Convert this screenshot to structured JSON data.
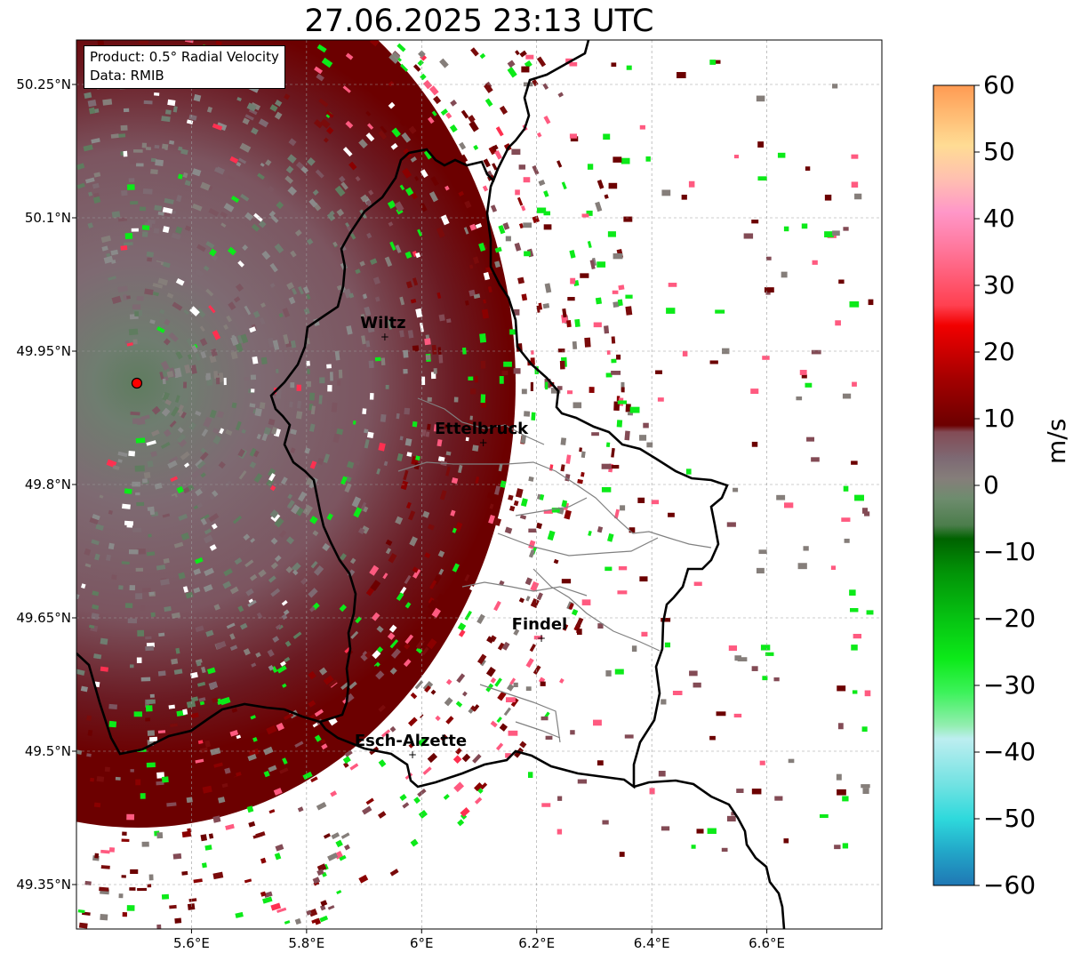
{
  "title": "27.06.2025 23:13 UTC",
  "info": {
    "product": "Product: 0.5° Radial Velocity",
    "source": "Data: RMIB"
  },
  "map": {
    "lon_range": [
      5.4,
      6.8
    ],
    "lat_range": [
      49.3,
      50.3
    ],
    "lat_ticks": [
      {
        "value": 50.25,
        "label": "50.25°N"
      },
      {
        "value": 50.1,
        "label": "50.1°N"
      },
      {
        "value": 49.95,
        "label": "49.95°N"
      },
      {
        "value": 49.8,
        "label": "49.8°N"
      },
      {
        "value": 49.65,
        "label": "49.65°N"
      },
      {
        "value": 49.5,
        "label": "49.5°N"
      },
      {
        "value": 49.35,
        "label": "49.35°N"
      }
    ],
    "lon_ticks": [
      {
        "value": 5.6,
        "label": "5.6°E"
      },
      {
        "value": 5.8,
        "label": "5.8°E"
      },
      {
        "value": 6.0,
        "label": "6°E"
      },
      {
        "value": 6.2,
        "label": "6.2°E"
      },
      {
        "value": 6.4,
        "label": "6.4°E"
      },
      {
        "value": 6.6,
        "label": "6.6°E"
      }
    ],
    "radar_site": {
      "lon": 5.505,
      "lat": 49.914
    },
    "cities": [
      {
        "name": "Wiltz",
        "lon": 5.933,
        "lat": 49.966
      },
      {
        "name": "Ettelbruck",
        "lon": 6.104,
        "lat": 49.847
      },
      {
        "name": "Findel",
        "lon": 6.205,
        "lat": 49.627
      },
      {
        "name": "Esch-Alzette",
        "lon": 5.981,
        "lat": 49.496
      }
    ],
    "colors": {
      "border": "#000000",
      "canton_lines": "#808080",
      "radar_marker": "#ff0000"
    }
  },
  "colorbar": {
    "label": "m/s",
    "min": -60,
    "max": 60,
    "ticks": [
      {
        "value": 60,
        "label": "60"
      },
      {
        "value": 50,
        "label": "50"
      },
      {
        "value": 40,
        "label": "40"
      },
      {
        "value": 30,
        "label": "30"
      },
      {
        "value": 20,
        "label": "20"
      },
      {
        "value": 10,
        "label": "10"
      },
      {
        "value": 0,
        "label": "0"
      },
      {
        "value": -10,
        "label": "−10"
      },
      {
        "value": -20,
        "label": "−20"
      },
      {
        "value": -30,
        "label": "−30"
      },
      {
        "value": -40,
        "label": "−40"
      },
      {
        "value": -50,
        "label": "−50"
      },
      {
        "value": -60,
        "label": "−60"
      }
    ],
    "stops": [
      {
        "v": -60,
        "c": "#1f77b4"
      },
      {
        "v": -55,
        "c": "#22a6c8"
      },
      {
        "v": -50,
        "c": "#2ed9dc"
      },
      {
        "v": -45,
        "c": "#70e2e2"
      },
      {
        "v": -38,
        "c": "#bdeef0"
      },
      {
        "v": -36,
        "c": "#93eeb0"
      },
      {
        "v": -31,
        "c": "#3cf25a"
      },
      {
        "v": -26,
        "c": "#0cea19"
      },
      {
        "v": -20,
        "c": "#06c312"
      },
      {
        "v": -13,
        "c": "#029307"
      },
      {
        "v": -8,
        "c": "#006200"
      },
      {
        "v": -6,
        "c": "#4b7d4b"
      },
      {
        "v": -2,
        "c": "#6e8c6e"
      },
      {
        "v": 1,
        "c": "#857e7a"
      },
      {
        "v": 4,
        "c": "#7e6a74"
      },
      {
        "v": 8,
        "c": "#834b55"
      },
      {
        "v": 9,
        "c": "#6c0000"
      },
      {
        "v": 16,
        "c": "#a40000"
      },
      {
        "v": 24,
        "c": "#f20000"
      },
      {
        "v": 27,
        "c": "#ff4050"
      },
      {
        "v": 36,
        "c": "#ff7aa0"
      },
      {
        "v": 41,
        "c": "#ff97c8"
      },
      {
        "v": 46,
        "c": "#ffc0b0"
      },
      {
        "v": 51,
        "c": "#ffdc94"
      },
      {
        "v": 56,
        "c": "#ffb870"
      },
      {
        "v": 60,
        "c": "#ff9a52"
      }
    ]
  }
}
